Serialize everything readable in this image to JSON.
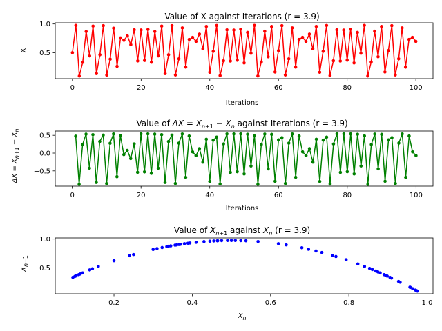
{
  "chart_data": [
    {
      "type": "line",
      "title": "Value of X against Iterations (r = 3.9)",
      "xlabel": "Iterations",
      "ylabel": "X",
      "xlim": [
        -5,
        105
      ],
      "ylim": [
        0.05,
        1.02
      ],
      "xticks": [
        0,
        20,
        40,
        60,
        80,
        100
      ],
      "yticks": [
        0.5,
        1.0
      ],
      "ytick_labels": [
        "0.5",
        "1.0"
      ],
      "grid": false,
      "series": [
        {
          "color": "#ff0000",
          "marker": "dot",
          "x": [
            0,
            1,
            2,
            3,
            4,
            5,
            6,
            7,
            8,
            9,
            10,
            11,
            12,
            13,
            14,
            15,
            16,
            17,
            18,
            19,
            20,
            21,
            22,
            23,
            24,
            25,
            26,
            27,
            28,
            29,
            30,
            31,
            32,
            33,
            34,
            35,
            36,
            37,
            38,
            39,
            40,
            41,
            42,
            43,
            44,
            45,
            46,
            47,
            48,
            49,
            50,
            51,
            52,
            53,
            54,
            55,
            56,
            57,
            58,
            59,
            60,
            61,
            62,
            63,
            64,
            65,
            66,
            67,
            68,
            69,
            70,
            71,
            72,
            73,
            74,
            75,
            76,
            77,
            78,
            79,
            80,
            81,
            82,
            83,
            84,
            85,
            86,
            87,
            88,
            89,
            90,
            91,
            92,
            93,
            94,
            95,
            96,
            97,
            98,
            99,
            100
          ],
          "y": [
            0.5,
            0.975,
            0.095,
            0.335,
            0.869,
            0.445,
            0.963,
            0.138,
            0.465,
            0.97,
            0.112,
            0.389,
            0.927,
            0.264,
            0.758,
            0.716,
            0.793,
            0.64,
            0.898,
            0.357,
            0.895,
            0.366,
            0.905,
            0.335,
            0.869,
            0.445,
            0.963,
            0.138,
            0.464,
            0.97,
            0.114,
            0.394,
            0.931,
            0.25,
            0.731,
            0.767,
            0.697,
            0.823,
            0.568,
            0.957,
            0.16,
            0.524,
            0.973,
            0.103,
            0.36,
            0.898,
            0.356,
            0.894,
            0.37,
            0.909,
            0.323,
            0.853,
            0.49,
            0.975,
            0.096,
            0.339,
            0.874,
            0.43,
            0.956,
            0.165,
            0.537,
            0.97,
            0.114,
            0.394,
            0.931,
            0.25,
            0.731,
            0.767,
            0.697,
            0.823,
            0.568,
            0.957,
            0.16,
            0.524,
            0.973,
            0.103,
            0.36,
            0.898,
            0.356,
            0.894,
            0.37,
            0.909,
            0.323,
            0.853,
            0.49,
            0.975,
            0.096,
            0.339,
            0.874,
            0.43,
            0.956,
            0.165,
            0.537,
            0.97,
            0.114,
            0.394,
            0.931,
            0.25,
            0.731,
            0.767,
            0.697
          ]
        }
      ]
    },
    {
      "type": "line",
      "title": "Value of ΔX = X_{n+1} − X_n against Iterations (r = 3.9)",
      "xlabel": "Iterations",
      "ylabel": "ΔX = X_{n+1} − X_n",
      "xlim": [
        -4.95,
        104.95
      ],
      "ylim": [
        -0.93,
        0.62
      ],
      "xticks": [
        0,
        20,
        40,
        60,
        80,
        100
      ],
      "yticks": [
        -0.5,
        0.0,
        0.5
      ],
      "ytick_labels": [
        "−0.5",
        "0.0",
        "0.5"
      ],
      "grid": false,
      "series": [
        {
          "color": "#008000",
          "marker": "dot",
          "x": [
            1,
            2,
            3,
            4,
            5,
            6,
            7,
            8,
            9,
            10,
            11,
            12,
            13,
            14,
            15,
            16,
            17,
            18,
            19,
            20,
            21,
            22,
            23,
            24,
            25,
            26,
            27,
            28,
            29,
            30,
            31,
            32,
            33,
            34,
            35,
            36,
            37,
            38,
            39,
            40,
            41,
            42,
            43,
            44,
            45,
            46,
            47,
            48,
            49,
            50,
            51,
            52,
            53,
            54,
            55,
            56,
            57,
            58,
            59,
            60,
            61,
            62,
            63,
            64,
            65,
            66,
            67,
            68,
            69,
            70,
            71,
            72,
            73,
            74,
            75,
            76,
            77,
            78,
            79,
            80,
            81,
            82,
            83,
            84,
            85,
            86,
            87,
            88,
            89,
            90,
            91,
            92,
            93,
            94,
            95,
            96,
            97,
            98,
            99,
            100
          ],
          "y": [
            0.475,
            -0.88,
            0.24,
            0.534,
            -0.424,
            0.518,
            -0.825,
            0.327,
            0.505,
            -0.858,
            0.277,
            0.538,
            -0.663,
            0.494,
            -0.042,
            0.077,
            -0.153,
            0.258,
            -0.541,
            0.538,
            -0.529,
            0.539,
            -0.57,
            0.534,
            -0.424,
            0.518,
            -0.825,
            0.326,
            0.506,
            -0.856,
            0.28,
            0.537,
            -0.681,
            0.481,
            0.036,
            -0.07,
            0.126,
            -0.255,
            0.389,
            -0.797,
            0.364,
            0.449,
            -0.87,
            0.257,
            0.538,
            -0.542,
            0.538,
            -0.524,
            0.539,
            -0.586,
            0.53,
            -0.363,
            0.485,
            -0.879,
            0.243,
            0.535,
            -0.444,
            0.526,
            -0.791,
            0.372,
            0.433,
            -0.856,
            0.28,
            0.537,
            -0.681,
            0.481,
            0.036,
            -0.07,
            0.126,
            -0.255,
            0.389,
            -0.797,
            0.364,
            0.449,
            -0.87,
            0.257,
            0.538,
            -0.542,
            0.538,
            -0.524,
            0.539,
            -0.586,
            0.53,
            -0.363,
            0.485,
            -0.879,
            0.243,
            0.535,
            -0.444,
            0.526,
            -0.791,
            0.372,
            0.433,
            -0.856,
            0.28,
            0.537,
            -0.681,
            0.481,
            0.036,
            -0.07
          ]
        }
      ]
    },
    {
      "type": "scatter",
      "title": "Value of X_{n+1} against X_n (r = 3.9)",
      "xlabel": "X_n",
      "ylabel": "X_{n+1}",
      "xlim": [
        0.05,
        1.015
      ],
      "ylim": [
        0.05,
        1.02
      ],
      "xticks": [
        0.2,
        0.4,
        0.6,
        0.8,
        1.0
      ],
      "xtick_labels": [
        "0.2",
        "0.4",
        "0.6",
        "0.8",
        "1.0"
      ],
      "yticks": [
        0.5,
        1.0
      ],
      "ytick_labels": [
        "0.5",
        "1.0"
      ],
      "grid": false,
      "series": [
        {
          "color": "#0000ff",
          "marker": "dot",
          "x": [
            0.095,
            0.1,
            0.103,
            0.11,
            0.114,
            0.12,
            0.138,
            0.145,
            0.16,
            0.2,
            0.24,
            0.25,
            0.3,
            0.31,
            0.323,
            0.335,
            0.339,
            0.345,
            0.356,
            0.36,
            0.366,
            0.37,
            0.38,
            0.389,
            0.394,
            0.41,
            0.43,
            0.445,
            0.455,
            0.464,
            0.465,
            0.475,
            0.49,
            0.5,
            0.51,
            0.524,
            0.537,
            0.568,
            0.62,
            0.64,
            0.68,
            0.697,
            0.716,
            0.731,
            0.758,
            0.767,
            0.793,
            0.823,
            0.84,
            0.853,
            0.86,
            0.869,
            0.874,
            0.88,
            0.89,
            0.894,
            0.898,
            0.905,
            0.909,
            0.927,
            0.931,
            0.956,
            0.957,
            0.963,
            0.97,
            0.973,
            0.975
          ],
          "y": [
            0.335,
            0.351,
            0.36,
            0.382,
            0.394,
            0.412,
            0.464,
            0.484,
            0.524,
            0.624,
            0.711,
            0.731,
            0.819,
            0.834,
            0.853,
            0.869,
            0.874,
            0.881,
            0.894,
            0.898,
            0.905,
            0.909,
            0.919,
            0.927,
            0.931,
            0.943,
            0.956,
            0.963,
            0.967,
            0.97,
            0.97,
            0.973,
            0.975,
            0.975,
            0.975,
            0.973,
            0.97,
            0.957,
            0.919,
            0.899,
            0.849,
            0.823,
            0.793,
            0.767,
            0.716,
            0.697,
            0.64,
            0.568,
            0.524,
            0.49,
            0.47,
            0.445,
            0.43,
            0.412,
            0.382,
            0.37,
            0.357,
            0.335,
            0.323,
            0.264,
            0.25,
            0.164,
            0.16,
            0.138,
            0.114,
            0.103,
            0.096
          ]
        }
      ]
    }
  ]
}
